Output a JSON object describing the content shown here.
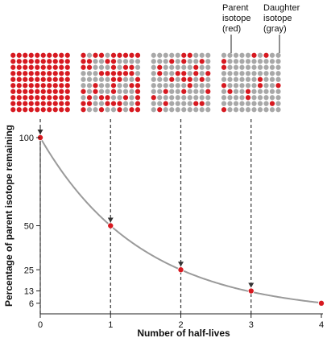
{
  "chart_data": {
    "type": "line",
    "xlabel": "Number of half-lives",
    "ylabel": "Percentage of parent isotope remaining",
    "x": [
      0,
      1,
      2,
      3,
      4
    ],
    "y": [
      100,
      50,
      25,
      13,
      6
    ],
    "xlim": [
      0,
      4
    ],
    "ylim": [
      0,
      100
    ],
    "x_ticks": [
      "0",
      "1",
      "2",
      "3",
      "4"
    ],
    "y_ticks": [
      {
        "value": 100,
        "label": "100"
      },
      {
        "value": 50,
        "label": "50"
      },
      {
        "value": 25,
        "label": "25"
      },
      {
        "value": 13,
        "label": "13"
      },
      {
        "value": 6,
        "label": "6"
      }
    ],
    "grid": false,
    "annotations": {
      "parent": [
        "Parent",
        "isotope",
        "(red)"
      ],
      "daughter": [
        "Daughter",
        "isotope",
        "(gray)"
      ]
    },
    "sample_grids": [
      {
        "half_lives": 0,
        "parent_fraction": 1.0
      },
      {
        "half_lives": 1,
        "parent_fraction": 0.5
      },
      {
        "half_lives": 2,
        "parent_fraction": 0.25
      },
      {
        "half_lives": 3,
        "parent_fraction": 0.13
      }
    ],
    "colors": {
      "parent": "#d71920",
      "daughter": "#a8a8a8",
      "curve": "#9a9a9a",
      "axis": "#222222",
      "dashed": "#333333"
    }
  }
}
